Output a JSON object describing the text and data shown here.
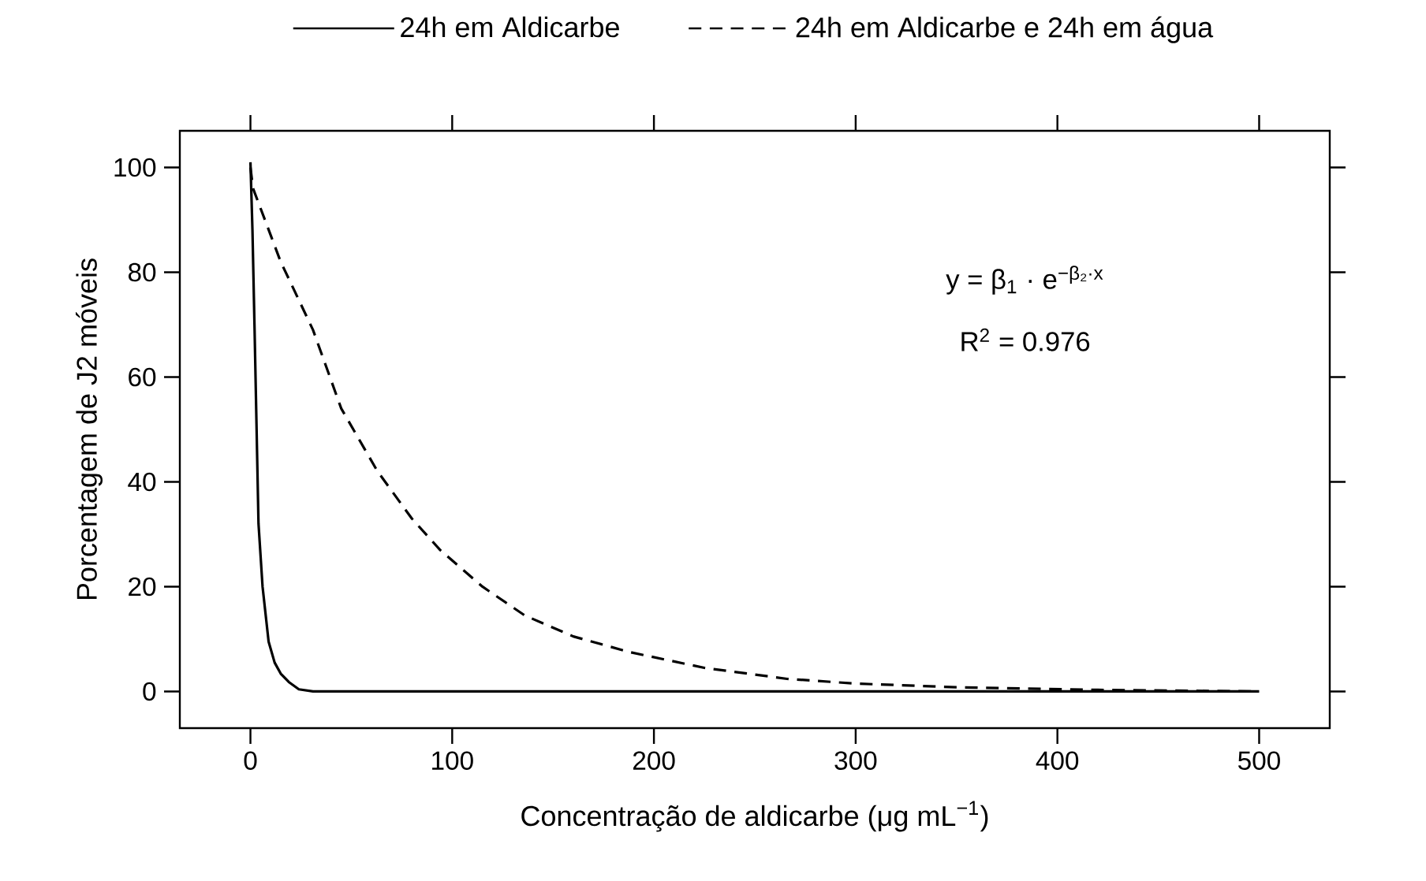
{
  "chart_data": {
    "type": "line",
    "xlabel": "Concentração de aldicarbe (μg mL$^{−1}$)",
    "ylabel": "Porcentagem de J2 móveis",
    "xlim": [
      -35,
      535
    ],
    "ylim": [
      -7,
      107
    ],
    "xticks": [
      0,
      100,
      200,
      300,
      400,
      500
    ],
    "yticks": [
      0,
      20,
      40,
      60,
      80,
      100
    ],
    "legend": "top",
    "grid": false,
    "marker": "none",
    "annotations": [
      "y = β$_{1}$ · e$^{−β₂·x}$",
      "R$^{2}$ = 0.976"
    ],
    "series": [
      {
        "name": "24h em Aldicarbe",
        "color": "#000000",
        "line_style": "solid",
        "x": [
          0,
          1,
          2,
          4,
          6,
          9,
          12,
          15,
          19,
          24,
          31,
          60,
          100,
          200,
          300,
          400,
          500
        ],
        "values": [
          101,
          88,
          70,
          32,
          20,
          9.5,
          5.5,
          3.4,
          1.8,
          0.4,
          0,
          0,
          0,
          0,
          0,
          0,
          0
        ]
      },
      {
        "name": "24h em Aldicarbe e 24h em água",
        "color": "#000000",
        "line_style": "dashed",
        "x": [
          0,
          1.3,
          15,
          31,
          45,
          63,
          80,
          94,
          115,
          136,
          160,
          188,
          225,
          266,
          300,
          350,
          420,
          500
        ],
        "values": [
          100,
          96,
          82,
          69,
          54,
          42,
          33,
          27,
          20,
          14.5,
          10.5,
          7.5,
          4.5,
          2.4,
          1.5,
          0.8,
          0.3,
          0
        ]
      }
    ]
  }
}
